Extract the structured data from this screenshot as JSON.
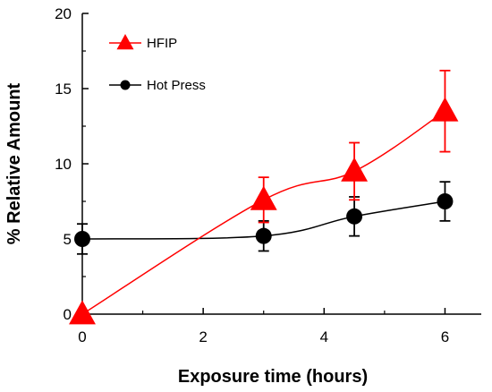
{
  "chart_data": {
    "type": "line",
    "title": "",
    "xlabel": "Exposure time (hours)",
    "ylabel": "% Relative Amount",
    "xlim": [
      0,
      6.6
    ],
    "ylim": [
      0,
      20
    ],
    "xticks": [
      0,
      2,
      4,
      6
    ],
    "yticks": [
      0,
      5,
      10,
      15,
      20
    ],
    "grid": false,
    "legend_position": "top-left",
    "series": [
      {
        "name": "HFIP",
        "color": "#ff0000",
        "marker": "triangle",
        "x": [
          0,
          3,
          4.5,
          6
        ],
        "y": [
          0,
          7.6,
          9.5,
          13.5
        ],
        "error": [
          0,
          1.5,
          1.9,
          2.7
        ]
      },
      {
        "name": "Hot Press",
        "color": "#000000",
        "marker": "circle",
        "x": [
          0,
          3,
          4.5,
          6
        ],
        "y": [
          5.0,
          5.2,
          6.5,
          7.5
        ],
        "error": [
          1.0,
          1.0,
          1.3,
          1.3
        ]
      }
    ]
  }
}
